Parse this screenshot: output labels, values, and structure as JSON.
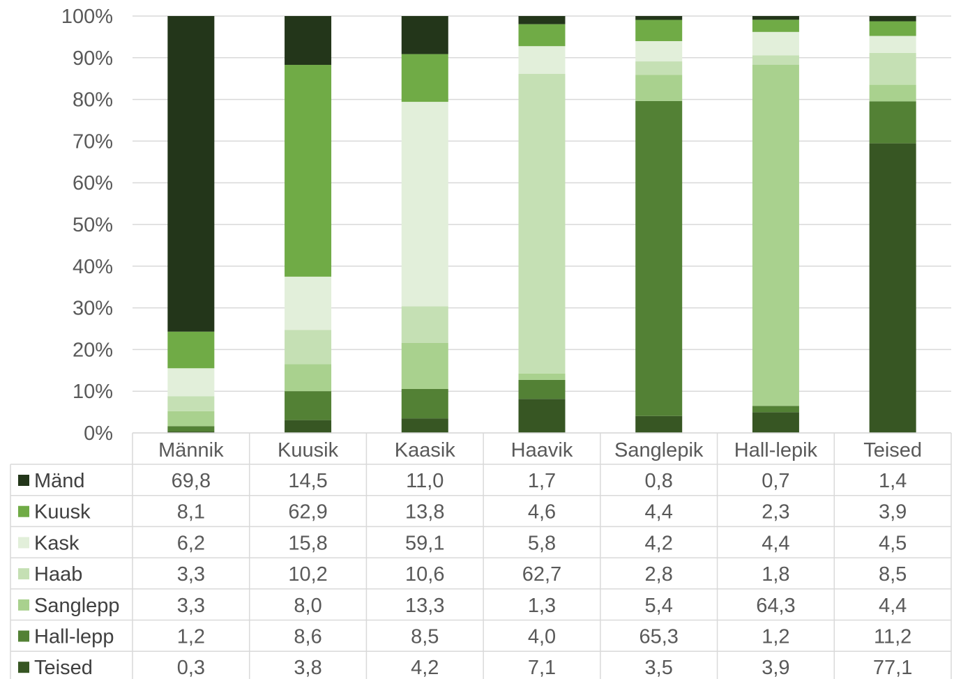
{
  "chart_data": {
    "type": "bar",
    "stacked": true,
    "normalized": true,
    "categories": [
      "Männik",
      "Kuusik",
      "Kaasik",
      "Haavik",
      "Sanglepik",
      "Hall-lepik",
      "Teised"
    ],
    "y_ticks": [
      "0%",
      "10%",
      "20%",
      "30%",
      "40%",
      "50%",
      "60%",
      "70%",
      "80%",
      "90%",
      "100%"
    ],
    "ylim": [
      0,
      100
    ],
    "grid": true,
    "legend_placement": "data-table",
    "series": [
      {
        "name": "Mänd",
        "color": "#23361a",
        "values": [
          "69,8",
          "14,5",
          "11,0",
          "1,7",
          "0,8",
          "0,7",
          "1,4"
        ]
      },
      {
        "name": "Kuusk",
        "color": "#70ab46",
        "values": [
          "8,1",
          "62,9",
          "13,8",
          "4,6",
          "4,4",
          "2,3",
          "3,9"
        ]
      },
      {
        "name": "Kask",
        "color": "#e2efda",
        "values": [
          "6,2",
          "15,8",
          "59,1",
          "5,8",
          "4,2",
          "4,4",
          "4,5"
        ]
      },
      {
        "name": "Haab",
        "color": "#c5e0b4",
        "values": [
          "3,3",
          "10,2",
          "10,6",
          "62,7",
          "2,8",
          "1,8",
          "8,5"
        ]
      },
      {
        "name": "Sanglepp",
        "color": "#a9d18e",
        "values": [
          "3,3",
          "8,0",
          "13,3",
          "1,3",
          "5,4",
          "64,3",
          "4,4"
        ]
      },
      {
        "name": "Hall-lepp",
        "color": "#538135",
        "values": [
          "1,2",
          "8,6",
          "8,5",
          "4,0",
          "65,3",
          "1,2",
          "11,2"
        ]
      },
      {
        "name": "Teised",
        "color": "#375623",
        "values": [
          "0,3",
          "3,8",
          "4,2",
          "7,1",
          "3,5",
          "3,9",
          "77,1"
        ]
      }
    ]
  }
}
